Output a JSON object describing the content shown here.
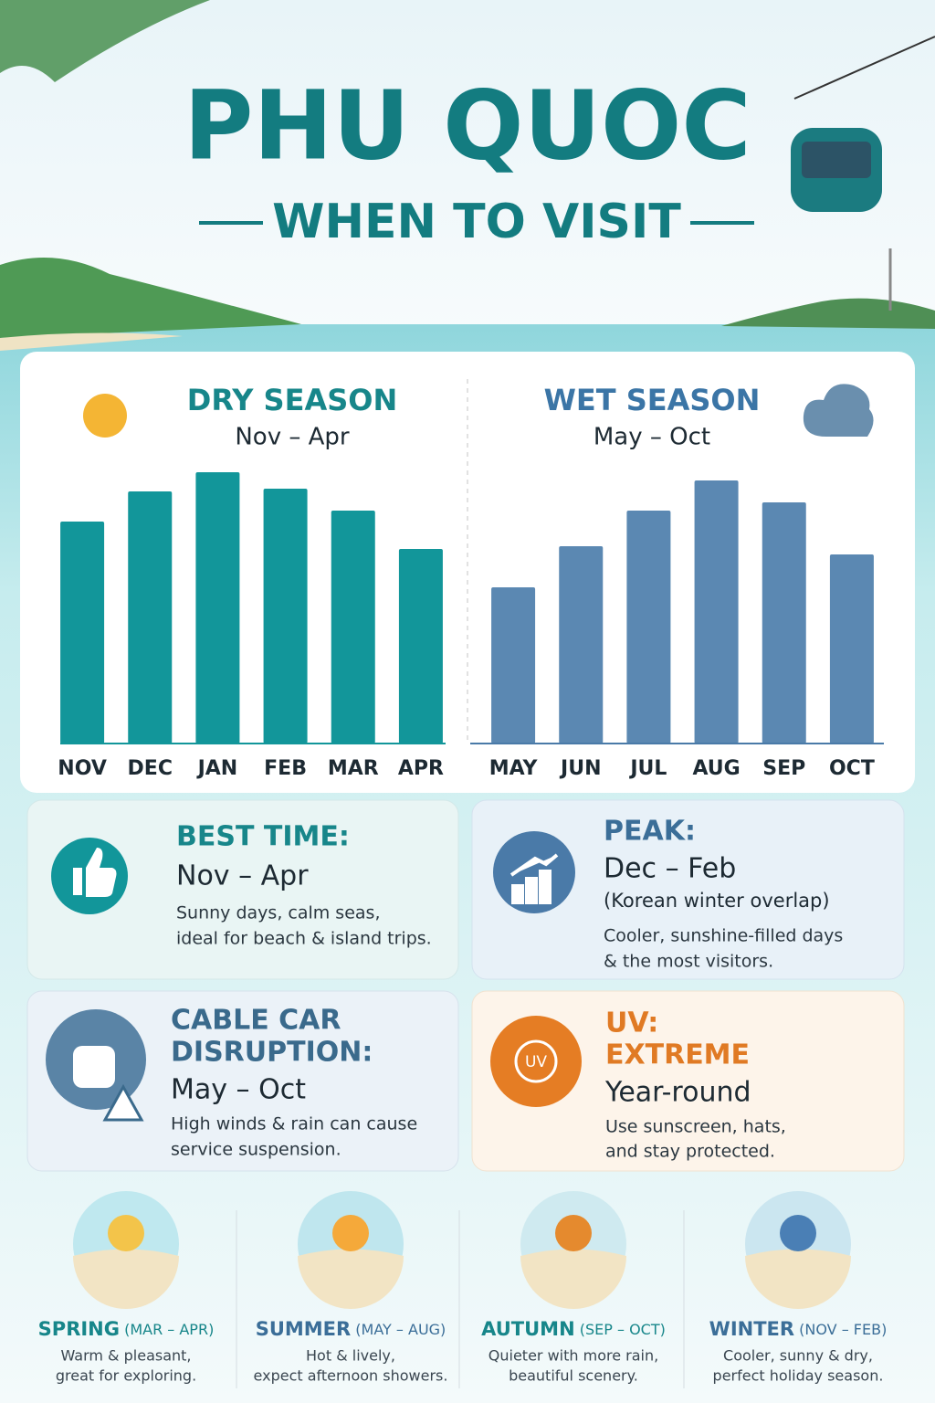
{
  "header": {
    "title": "PHU QUOC",
    "subtitle": "WHEN TO VISIT"
  },
  "chart_data": [
    {
      "type": "bar",
      "title": "DRY SEASON",
      "subtitle": "Nov – Apr",
      "categories": [
        "NOV",
        "DEC",
        "JAN",
        "FEB",
        "MAR",
        "APR"
      ],
      "values": [
        81,
        92,
        99,
        93,
        85,
        71
      ],
      "color": "#12969a",
      "ylim": [
        0,
        100
      ]
    },
    {
      "type": "bar",
      "title": "WET SEASON",
      "subtitle": "May – Oct",
      "categories": [
        "MAY",
        "JUN",
        "JUL",
        "AUG",
        "SEP",
        "OCT"
      ],
      "values": [
        57,
        72,
        85,
        96,
        88,
        69
      ],
      "color": "#5b88b2",
      "ylim": [
        0,
        100
      ]
    }
  ],
  "cards": [
    {
      "title": [
        "BEST TIME:"
      ],
      "period": "Nov – Apr",
      "description": [
        "Sunny days, calm seas,",
        "ideal for beach & island trips."
      ]
    },
    {
      "title": [
        "PEAK:"
      ],
      "period": "Dec – Feb",
      "note": "(Korean winter overlap)",
      "description": [
        "Cooler, sunshine-filled days",
        "& the most visitors."
      ]
    },
    {
      "title": [
        "CABLE CAR",
        "DISRUPTION:"
      ],
      "period": "May – Oct",
      "description": [
        "High winds & rain can cause",
        "service suspension."
      ]
    },
    {
      "title": [
        "UV:",
        "EXTREME"
      ],
      "period": "Year-round",
      "description": [
        "Use sunscreen, hats,",
        "and stay protected."
      ],
      "icon": "UV"
    }
  ],
  "seasons": [
    {
      "name": "SPRING",
      "range": "(MAR – APR)",
      "description": [
        "Warm & pleasant,",
        "great for exploring."
      ]
    },
    {
      "name": "SUMMER",
      "range": "(MAY – AUG)",
      "description": [
        "Hot & lively,",
        "expect afternoon showers."
      ]
    },
    {
      "name": "AUTUMN",
      "range": "(SEP – OCT)",
      "description": [
        "Quieter with more rain,",
        "beautiful scenery."
      ]
    },
    {
      "name": "WINTER",
      "range": "(NOV – FEB)",
      "description": [
        "Cooler, sunny & dry,",
        "perfect holiday season."
      ]
    }
  ]
}
